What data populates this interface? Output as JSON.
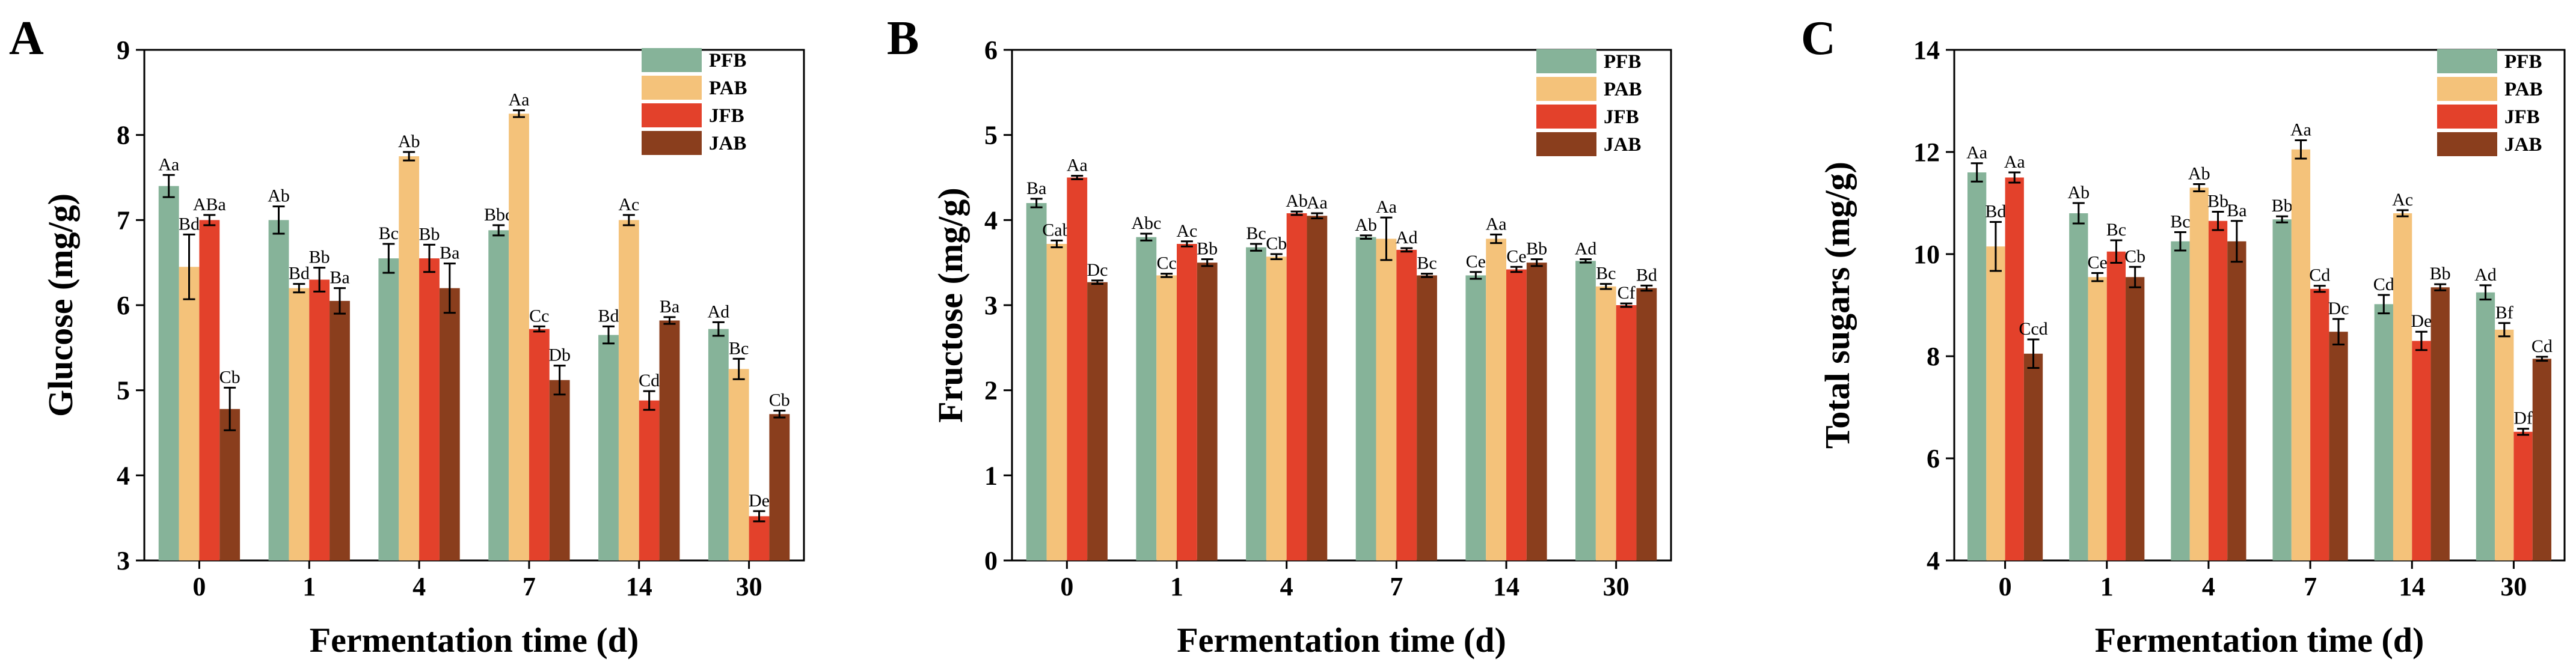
{
  "colors": {
    "PFB": "#86b399",
    "PAB": "#f4c27a",
    "JFB": "#e3412b",
    "JAB": "#8a3e1d"
  },
  "chart_data": [
    {
      "type": "bar",
      "panel": "A",
      "xlabel": "Fermentation time (d)",
      "ylabel": "Glucose (mg/g)",
      "categories": [
        "0",
        "1",
        "4",
        "7",
        "14",
        "30"
      ],
      "ylim": [
        3,
        9
      ],
      "yticks": [
        3,
        4,
        5,
        6,
        7,
        8,
        9
      ],
      "legend": [
        "PFB",
        "PAB",
        "JFB",
        "JAB"
      ],
      "series": [
        {
          "name": "PFB",
          "values": [
            7.4,
            7.0,
            6.55,
            6.88,
            5.65,
            5.72
          ],
          "errors": [
            0.13,
            0.16,
            0.17,
            0.06,
            0.1,
            0.08
          ],
          "labels": [
            "Aa",
            "Ab",
            "Bc",
            "Bbc",
            "Bd",
            "Ad"
          ]
        },
        {
          "name": "PAB",
          "values": [
            6.45,
            6.2,
            7.75,
            8.25,
            7.0,
            5.25
          ],
          "errors": [
            0.38,
            0.05,
            0.05,
            0.04,
            0.06,
            0.12
          ],
          "labels": [
            "Bd",
            "Bd",
            "Ab",
            "Aa",
            "Ac",
            "Bc"
          ]
        },
        {
          "name": "JFB",
          "values": [
            7.0,
            6.3,
            6.55,
            5.72,
            4.88,
            3.52
          ],
          "errors": [
            0.06,
            0.14,
            0.16,
            0.03,
            0.11,
            0.06
          ],
          "labels": [
            "ABa",
            "Bb",
            "Bb",
            "Cc",
            "Cd",
            "De"
          ]
        },
        {
          "name": "JAB",
          "values": [
            4.78,
            6.05,
            6.2,
            5.12,
            5.82,
            4.72
          ],
          "errors": [
            0.25,
            0.15,
            0.29,
            0.17,
            0.04,
            0.04
          ],
          "labels": [
            "Cb",
            "Ba",
            "Ba",
            "Db",
            "Ba",
            "Cb"
          ]
        }
      ]
    },
    {
      "type": "bar",
      "panel": "B",
      "xlabel": "Fermentation time (d)",
      "ylabel": "Fructose (mg/g)",
      "categories": [
        "0",
        "1",
        "4",
        "7",
        "14",
        "30"
      ],
      "ylim": [
        0,
        6
      ],
      "yticks": [
        0,
        1,
        2,
        3,
        4,
        5,
        6
      ],
      "legend": [
        "PFB",
        "PAB",
        "JFB",
        "JAB"
      ],
      "series": [
        {
          "name": "PFB",
          "values": [
            4.2,
            3.8,
            3.68,
            3.8,
            3.35,
            3.52
          ],
          "errors": [
            0.05,
            0.04,
            0.04,
            0.02,
            0.04,
            0.02
          ],
          "labels": [
            "Ba",
            "Abc",
            "Bc",
            "Ab",
            "Ce",
            "Ad"
          ]
        },
        {
          "name": "PAB",
          "values": [
            3.72,
            3.35,
            3.57,
            3.78,
            3.78,
            3.22
          ],
          "errors": [
            0.04,
            0.02,
            0.03,
            0.25,
            0.05,
            0.03
          ],
          "labels": [
            "Cab",
            "Cc",
            "Cb",
            "Aa",
            "Aa",
            "Bc"
          ]
        },
        {
          "name": "JFB",
          "values": [
            4.5,
            3.72,
            4.08,
            3.65,
            3.42,
            3.0
          ],
          "errors": [
            0.02,
            0.03,
            0.02,
            0.02,
            0.03,
            0.02
          ],
          "labels": [
            "Aa",
            "Ac",
            "Ab",
            "Ad",
            "Ce",
            "Cf"
          ]
        },
        {
          "name": "JAB",
          "values": [
            3.27,
            3.5,
            4.05,
            3.35,
            3.5,
            3.2
          ],
          "errors": [
            0.02,
            0.04,
            0.03,
            0.02,
            0.04,
            0.03
          ],
          "labels": [
            "Dc",
            "Bb",
            "Aa",
            "Bc",
            "Bb",
            "Bd"
          ]
        }
      ]
    },
    {
      "type": "bar",
      "panel": "C",
      "xlabel": "Fermentation time (d)",
      "ylabel": "Total sugars (mg/g)",
      "categories": [
        "0",
        "1",
        "4",
        "7",
        "14",
        "30"
      ],
      "ylim": [
        4,
        14
      ],
      "yticks": [
        4,
        6,
        8,
        10,
        12,
        14
      ],
      "legend": [
        "PFB",
        "PAB",
        "JFB",
        "JAB"
      ],
      "series": [
        {
          "name": "PFB",
          "values": [
            11.6,
            10.8,
            10.25,
            10.68,
            9.02,
            9.25
          ],
          "errors": [
            0.18,
            0.2,
            0.18,
            0.06,
            0.18,
            0.14
          ],
          "labels": [
            "Aa",
            "Ab",
            "Bc",
            "Bb",
            "Cd",
            "Ad"
          ]
        },
        {
          "name": "PAB",
          "values": [
            10.15,
            9.55,
            11.3,
            12.05,
            10.8,
            8.52
          ],
          "errors": [
            0.48,
            0.08,
            0.07,
            0.18,
            0.06,
            0.13
          ],
          "labels": [
            "Bd",
            "Ce",
            "Ab",
            "Aa",
            "Ac",
            "Bf"
          ]
        },
        {
          "name": "JFB",
          "values": [
            11.5,
            10.05,
            10.65,
            9.32,
            8.3,
            6.52
          ],
          "errors": [
            0.1,
            0.22,
            0.18,
            0.06,
            0.18,
            0.06
          ],
          "labels": [
            "Aa",
            "Bc",
            "Bb",
            "Cd",
            "De",
            "Df"
          ]
        },
        {
          "name": "JAB",
          "values": [
            8.05,
            9.55,
            10.25,
            8.48,
            9.35,
            7.95
          ],
          "errors": [
            0.28,
            0.2,
            0.4,
            0.25,
            0.06,
            0.04
          ],
          "labels": [
            "Ccd",
            "Cb",
            "Ba",
            "Dc",
            "Bb",
            "Cd"
          ]
        }
      ]
    }
  ]
}
